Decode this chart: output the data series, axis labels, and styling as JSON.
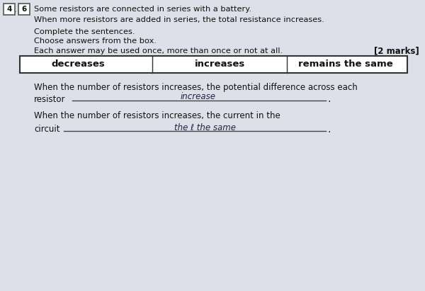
{
  "bg_color": "#dde0e8",
  "question_number_left": "4",
  "question_number_right": "6",
  "line1": "Some resistors are connected in series with a battery.",
  "line2": "When more resistors are added in series, the total resistance increases.",
  "line3": "Complete the sentences.",
  "line4": "Choose answers from the box.",
  "line5": "Each answer may be used once, more than once or not at all.",
  "marks": "[2 marks]",
  "box_options": [
    "decreases",
    "increases",
    "remains the same"
  ],
  "q1_prefix": "When the number of resistors increases, the potential difference across each",
  "q1_label": "resistor",
  "q1_answer": "increase",
  "q2_prefix": "When the number of resistors increases, the current in the",
  "q2_label": "circuit",
  "q2_answer_handwritten": "the ℓ the same",
  "font_color": "#111111",
  "box_border_color": "#333333",
  "handwriting_color": "#222244",
  "line_color": "#444444"
}
